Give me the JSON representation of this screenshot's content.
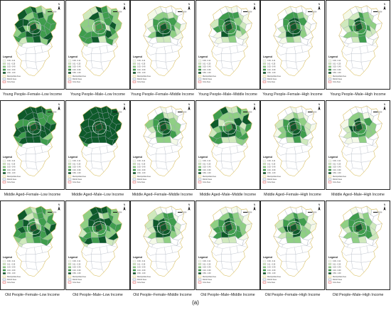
{
  "figure_label": "(a)",
  "north_label": "N",
  "panels": [
    {
      "caption": "Young People–Female–Low Income",
      "shade": 0.6
    },
    {
      "caption": "Young People–Male–Low Income",
      "shade": 0.55
    },
    {
      "caption": "Young People–Female–Middle Income",
      "shade": 0.35
    },
    {
      "caption": "Young People–Male–Middle Income",
      "shade": 0.4
    },
    {
      "caption": "Young People–Female–High Income",
      "shade": 0.3
    },
    {
      "caption": "Young People–Male–High Income",
      "shade": 0.3
    },
    {
      "caption": "Middle Aged–Female–Low Income",
      "shade": 0.75
    },
    {
      "caption": "Middle Aged–Male–Low Income",
      "shade": 0.95
    },
    {
      "caption": "Middle Aged–Female–Middle Income",
      "shade": 0.35
    },
    {
      "caption": "Middle Aged–Male–Middle Income",
      "shade": 0.5
    },
    {
      "caption": "Middle Aged–Female–High Income",
      "shade": 0.3
    },
    {
      "caption": "Middle Aged–Male–High Income",
      "shade": 0.3
    },
    {
      "caption": "Old People–Female–Low Income",
      "shade": 0.55
    },
    {
      "caption": "Old People–Male–Low Income",
      "shade": 0.6
    },
    {
      "caption": "Old People–Female–Middle Income",
      "shade": 0.4
    },
    {
      "caption": "Old People–Male–Middle Income",
      "shade": 0.4
    },
    {
      "caption": "Old People–Female–High Income",
      "shade": 0.35
    },
    {
      "caption": "Old People–Male–High Income",
      "shade": 0.35
    }
  ],
  "legend": {
    "title": "Legend",
    "classes": [
      {
        "label": "0.00 - 0.11",
        "color": "#f4f9e8"
      },
      {
        "label": "0.11 - 0.25",
        "color": "#cfe9bd"
      },
      {
        "label": "0.25 - 0.40",
        "color": "#8fcf84"
      },
      {
        "label": "0.40 - 0.60",
        "color": "#3f9d4d"
      },
      {
        "label": "0.60 - 1.00",
        "color": "#0e5a2a"
      }
    ],
    "boundaries": [
      {
        "label": "Metropolitan Area",
        "color": "#e0c35a"
      },
      {
        "label": "District Area",
        "color": "#7a8fb0"
      },
      {
        "label": "Core Area",
        "color": "#d44"
      }
    ]
  },
  "colors": {
    "outline_yellow": "#e0c35a",
    "outline_gray": "#8a94a6",
    "frame": "#222222"
  }
}
